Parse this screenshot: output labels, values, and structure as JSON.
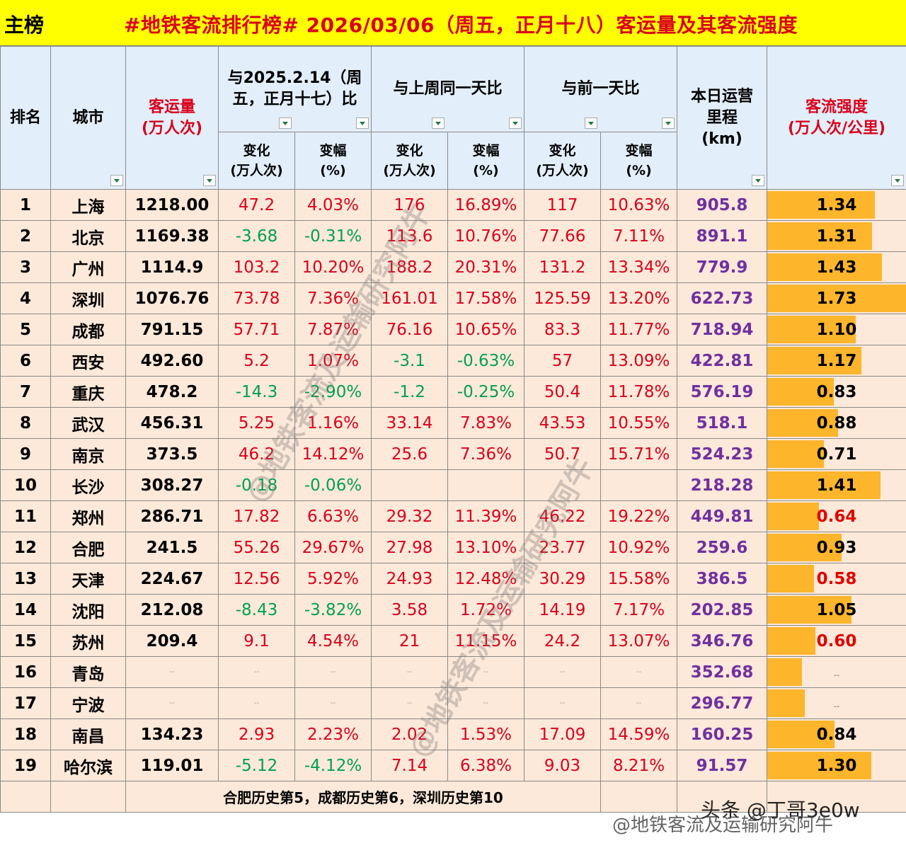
{
  "header": {
    "tag": "主榜",
    "title": "#地铁客流排行榜# 2026/03/06（周五，正月十八）客运量及其客流强度"
  },
  "columns": {
    "rank": "排名",
    "city": "城市",
    "volume_line1": "客运量",
    "volume_line2": "(万人次)",
    "yoy_line1": "与2025.2.14（周",
    "yoy_line2": "五，正月十七）比",
    "wow": "与上周同一天比",
    "dod": "与前一天比",
    "change_line1": "变化",
    "change_line2": "(万人次)",
    "pct_line1": "变幅",
    "pct_line2": "(%)",
    "length_line1": "本日运营",
    "length_line2": "里程",
    "length_line3": "(km)",
    "intensity_line1": "客流强度",
    "intensity_line2": "(万人次/公里)"
  },
  "rows": [
    {
      "rank": "1",
      "city": "上海",
      "volume": "1218.00",
      "yoy_chg": "47.2",
      "yoy_pct": "4.03%",
      "wow_chg": "176",
      "wow_pct": "16.89%",
      "dod_chg": "117",
      "dod_pct": "10.63%",
      "length": "905.8",
      "intensity": "1.34",
      "bar": 0.775
    },
    {
      "rank": "2",
      "city": "北京",
      "volume": "1169.38",
      "yoy_chg": "-3.68",
      "yoy_pct": "-0.31%",
      "wow_chg": "113.6",
      "wow_pct": "10.76%",
      "dod_chg": "77.66",
      "dod_pct": "7.11%",
      "length": "891.1",
      "intensity": "1.31",
      "bar": 0.757
    },
    {
      "rank": "3",
      "city": "广州",
      "volume": "1114.9",
      "yoy_chg": "103.2",
      "yoy_pct": "10.20%",
      "wow_chg": "188.2",
      "wow_pct": "20.31%",
      "dod_chg": "131.2",
      "dod_pct": "13.34%",
      "length": "779.9",
      "intensity": "1.43",
      "bar": 0.827
    },
    {
      "rank": "4",
      "city": "深圳",
      "volume": "1076.76",
      "yoy_chg": "73.78",
      "yoy_pct": "7.36%",
      "wow_chg": "161.01",
      "wow_pct": "17.58%",
      "dod_chg": "125.59",
      "dod_pct": "13.20%",
      "length": "622.73",
      "intensity": "1.73",
      "bar": 1.0
    },
    {
      "rank": "5",
      "city": "成都",
      "volume": "791.15",
      "yoy_chg": "57.71",
      "yoy_pct": "7.87%",
      "wow_chg": "76.16",
      "wow_pct": "10.65%",
      "dod_chg": "83.3",
      "dod_pct": "11.77%",
      "length": "718.94",
      "intensity": "1.10",
      "bar": 0.636
    },
    {
      "rank": "6",
      "city": "西安",
      "volume": "492.60",
      "yoy_chg": "5.2",
      "yoy_pct": "1.07%",
      "wow_chg": "-3.1",
      "wow_pct": "-0.63%",
      "dod_chg": "57",
      "dod_pct": "13.09%",
      "length": "422.81",
      "intensity": "1.17",
      "bar": 0.676
    },
    {
      "rank": "7",
      "city": "重庆",
      "volume": "478.2",
      "yoy_chg": "-14.3",
      "yoy_pct": "-2.90%",
      "wow_chg": "-1.2",
      "wow_pct": "-0.25%",
      "dod_chg": "50.4",
      "dod_pct": "11.78%",
      "length": "576.19",
      "intensity": "0.83",
      "bar": 0.48
    },
    {
      "rank": "8",
      "city": "武汉",
      "volume": "456.31",
      "yoy_chg": "5.25",
      "yoy_pct": "1.16%",
      "wow_chg": "33.14",
      "wow_pct": "7.83%",
      "dod_chg": "43.53",
      "dod_pct": "10.55%",
      "length": "518.1",
      "intensity": "0.88",
      "bar": 0.509
    },
    {
      "rank": "9",
      "city": "南京",
      "volume": "373.5",
      "yoy_chg": "46.2",
      "yoy_pct": "14.12%",
      "wow_chg": "25.6",
      "wow_pct": "7.36%",
      "dod_chg": "50.7",
      "dod_pct": "15.71%",
      "length": "524.23",
      "intensity": "0.71",
      "bar": 0.41
    },
    {
      "rank": "10",
      "city": "长沙",
      "volume": "308.27",
      "yoy_chg": "-0.18",
      "yoy_pct": "-0.06%",
      "wow_chg": "",
      "wow_pct": "",
      "dod_chg": "",
      "dod_pct": "",
      "length": "218.28",
      "intensity": "1.41",
      "bar": 0.815
    },
    {
      "rank": "11",
      "city": "郑州",
      "volume": "286.71",
      "yoy_chg": "17.82",
      "yoy_pct": "6.63%",
      "wow_chg": "29.32",
      "wow_pct": "11.39%",
      "dod_chg": "46.22",
      "dod_pct": "19.22%",
      "length": "449.81",
      "intensity": "0.64",
      "bar": 0.37
    },
    {
      "rank": "12",
      "city": "合肥",
      "volume": "241.5",
      "yoy_chg": "55.26",
      "yoy_pct": "29.67%",
      "wow_chg": "27.98",
      "wow_pct": "13.10%",
      "dod_chg": "23.77",
      "dod_pct": "10.92%",
      "length": "259.6",
      "intensity": "0.93",
      "bar": 0.538
    },
    {
      "rank": "13",
      "city": "天津",
      "volume": "224.67",
      "yoy_chg": "12.56",
      "yoy_pct": "5.92%",
      "wow_chg": "24.93",
      "wow_pct": "12.48%",
      "dod_chg": "30.29",
      "dod_pct": "15.58%",
      "length": "386.5",
      "intensity": "0.58",
      "bar": 0.335
    },
    {
      "rank": "14",
      "city": "沈阳",
      "volume": "212.08",
      "yoy_chg": "-8.43",
      "yoy_pct": "-3.82%",
      "wow_chg": "3.58",
      "wow_pct": "1.72%",
      "dod_chg": "14.19",
      "dod_pct": "7.17%",
      "length": "202.85",
      "intensity": "1.05",
      "bar": 0.607
    },
    {
      "rank": "15",
      "city": "苏州",
      "volume": "209.4",
      "yoy_chg": "9.1",
      "yoy_pct": "4.54%",
      "wow_chg": "21",
      "wow_pct": "11.15%",
      "dod_chg": "24.2",
      "dod_pct": "13.07%",
      "length": "346.76",
      "intensity": "0.60",
      "bar": 0.347
    },
    {
      "rank": "16",
      "city": "青岛",
      "volume": "--",
      "yoy_chg": "--",
      "yoy_pct": "--",
      "wow_chg": "--",
      "wow_pct": "--",
      "dod_chg": "--",
      "dod_pct": "--",
      "length": "352.68",
      "intensity": "--",
      "bar": 0.25
    },
    {
      "rank": "17",
      "city": "宁波",
      "volume": "--",
      "yoy_chg": "--",
      "yoy_pct": "--",
      "wow_chg": "--",
      "wow_pct": "--",
      "dod_chg": "--",
      "dod_pct": "--",
      "length": "296.77",
      "intensity": "--",
      "bar": 0.27
    },
    {
      "rank": "18",
      "city": "南昌",
      "volume": "134.23",
      "yoy_chg": "2.93",
      "yoy_pct": "2.23%",
      "wow_chg": "2.02",
      "wow_pct": "1.53%",
      "dod_chg": "17.09",
      "dod_pct": "14.59%",
      "length": "160.25",
      "intensity": "0.84",
      "bar": 0.486
    },
    {
      "rank": "19",
      "city": "哈尔滨",
      "volume": "119.01",
      "yoy_chg": "-5.12",
      "yoy_pct": "-4.12%",
      "wow_chg": "7.14",
      "wow_pct": "6.38%",
      "dod_chg": "9.03",
      "dod_pct": "8.21%",
      "length": "91.57",
      "intensity": "1.30",
      "bar": 0.751
    }
  ],
  "footer_note": "合肥历史第5，成都历史第6，深圳历史第10",
  "watermarks": {
    "weibo": "@地铁客流及运输研究阿牛",
    "toutiao": "头条 @丁哥3e0w"
  },
  "colors": {
    "title_bg": "#ffff00",
    "title_text": "#d9001b",
    "header_bg": "#e2eefa",
    "row_bg": "#fde9d9",
    "bar": "#fdb52b",
    "positive": "#d9001b",
    "negative": "#00a050",
    "length_text": "#7030a0"
  }
}
